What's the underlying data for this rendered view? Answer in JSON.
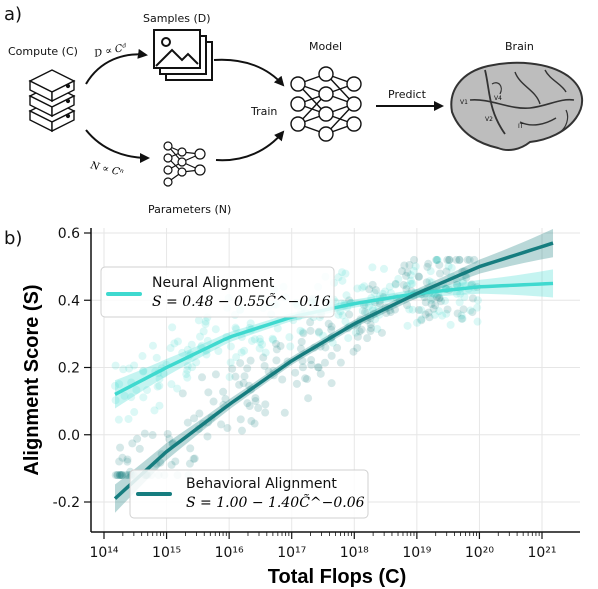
{
  "panel_a": {
    "label": "a)",
    "compute_label": "Compute (C)",
    "samples_label": "Samples (D)",
    "samples_formula": "D ∝ Cᵈ",
    "parameters_label": "Parameters (N)",
    "parameters_formula": "N ∝ Cⁿ",
    "train_label": "Train",
    "model_label": "Model",
    "predict_label": "Predict",
    "brain_label": "Brain",
    "brain_regions": [
      "V1",
      "V4",
      "V2",
      "IT"
    ]
  },
  "panel_b": {
    "label": "b)"
  },
  "colors": {
    "neural": "#3fd9cf",
    "behavioral": "#167d7f",
    "brain_fill": "#bdbdbd"
  },
  "chart_data": {
    "type": "scatter",
    "xlabel": "Total Flops (C)",
    "ylabel": "Alignment Score (S)",
    "xscale": "log",
    "xlim": [
      100000000000000.0,
      1e+21
    ],
    "ylim": [
      -0.2,
      0.6
    ],
    "xticks": [
      "10¹⁴",
      "10¹⁵",
      "10¹⁶",
      "10¹⁷",
      "10¹⁸",
      "10¹⁹",
      "10²⁰",
      "10²¹"
    ],
    "yticks": [
      "-0.2",
      "0.0",
      "0.2",
      "0.4",
      "0.6"
    ],
    "grid": true,
    "series": [
      {
        "name": "Neural Alignment",
        "formula": "S = 0.48 − 0.55C̃^−0.16",
        "fit_points": [
          [
            150000000000000.0,
            0.12
          ],
          [
            1000000000000000.0,
            0.2
          ],
          [
            1e+16,
            0.29
          ],
          [
            1e+17,
            0.35
          ],
          [
            1e+18,
            0.39
          ],
          [
            1e+19,
            0.42
          ],
          [
            1e+20,
            0.44
          ],
          [
            1.5e+21,
            0.45
          ]
        ]
      },
      {
        "name": "Behavioral Alignment",
        "formula": "S = 1.00 − 1.40C̃^−0.06",
        "fit_points": [
          [
            150000000000000.0,
            -0.19
          ],
          [
            1000000000000000.0,
            -0.05
          ],
          [
            1e+16,
            0.09
          ],
          [
            1e+17,
            0.22
          ],
          [
            1e+18,
            0.33
          ],
          [
            1e+19,
            0.42
          ],
          [
            1e+20,
            0.5
          ],
          [
            1.5e+21,
            0.57
          ]
        ]
      }
    ],
    "legend_entries": [
      {
        "name": "Neural Alignment",
        "formula": "S = 0.48 − 0.55C̃^−0.16",
        "placement": "upper-left"
      },
      {
        "name": "Behavioral Alignment",
        "formula": "S = 1.00 − 1.40C̃^−0.06",
        "placement": "lower-center"
      }
    ]
  }
}
